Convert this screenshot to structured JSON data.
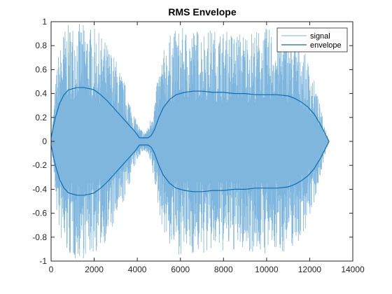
{
  "chart_data": {
    "type": "line",
    "title": "RMS Envelope",
    "xlabel": "",
    "ylabel": "",
    "xlim": [
      0,
      14000
    ],
    "ylim": [
      -1,
      1
    ],
    "xticks": [
      "0",
      "2000",
      "4000",
      "6000",
      "8000",
      "10000",
      "12000",
      "14000"
    ],
    "yticks": [
      "1",
      "0.8",
      "0.6",
      "0.4",
      "0.2",
      "0",
      "-0.2",
      "-0.4",
      "-0.6",
      "-0.8",
      "-1"
    ],
    "legend_position": "top-right",
    "grid": false,
    "series": [
      {
        "name": "signal",
        "color": "#7eb6de",
        "amplitude_envelope": {
          "x": [
            0,
            300,
            600,
            1000,
            1500,
            2000,
            2500,
            3000,
            3500,
            3800,
            4100,
            4300,
            4500,
            4800,
            5000,
            5300,
            5600,
            6000,
            7000,
            8000,
            9000,
            10000,
            11000,
            11500,
            12000,
            12300,
            12600,
            12900
          ],
          "y": [
            0.0,
            0.7,
            0.95,
            1.0,
            0.98,
            0.95,
            0.85,
            0.7,
            0.45,
            0.25,
            0.12,
            0.08,
            0.12,
            0.35,
            0.6,
            0.82,
            0.92,
            0.95,
            0.95,
            0.93,
            0.92,
            0.95,
            0.92,
            0.85,
            0.65,
            0.45,
            0.2,
            0.0
          ]
        }
      },
      {
        "name": "envelope",
        "color": "#0b6fb3",
        "x": [
          0,
          100,
          200,
          400,
          600,
          800,
          1000,
          1200,
          1500,
          1800,
          2000,
          2300,
          2600,
          2900,
          3200,
          3500,
          3700,
          3900,
          4100,
          4300,
          4500,
          4650,
          4800,
          5000,
          5200,
          5500,
          5800,
          6200,
          6600,
          7000,
          7500,
          8000,
          8500,
          9000,
          9500,
          10000,
          10500,
          11000,
          11300,
          11600,
          11900,
          12200,
          12500,
          12700,
          12900
        ],
        "upper": [
          0.03,
          0.12,
          0.2,
          0.32,
          0.39,
          0.43,
          0.44,
          0.45,
          0.45,
          0.44,
          0.43,
          0.39,
          0.34,
          0.28,
          0.22,
          0.16,
          0.12,
          0.08,
          0.03,
          0.03,
          0.03,
          0.05,
          0.1,
          0.2,
          0.28,
          0.35,
          0.39,
          0.41,
          0.42,
          0.42,
          0.41,
          0.41,
          0.4,
          0.4,
          0.39,
          0.39,
          0.39,
          0.38,
          0.36,
          0.33,
          0.29,
          0.23,
          0.14,
          0.07,
          0.0
        ],
        "lower": [
          -0.03,
          -0.12,
          -0.2,
          -0.32,
          -0.39,
          -0.43,
          -0.44,
          -0.45,
          -0.45,
          -0.44,
          -0.43,
          -0.39,
          -0.34,
          -0.28,
          -0.22,
          -0.16,
          -0.12,
          -0.08,
          -0.03,
          -0.03,
          -0.03,
          -0.05,
          -0.1,
          -0.2,
          -0.28,
          -0.35,
          -0.39,
          -0.41,
          -0.42,
          -0.42,
          -0.41,
          -0.41,
          -0.4,
          -0.4,
          -0.39,
          -0.39,
          -0.39,
          -0.38,
          -0.36,
          -0.33,
          -0.29,
          -0.23,
          -0.14,
          -0.07,
          0.0
        ]
      }
    ]
  }
}
